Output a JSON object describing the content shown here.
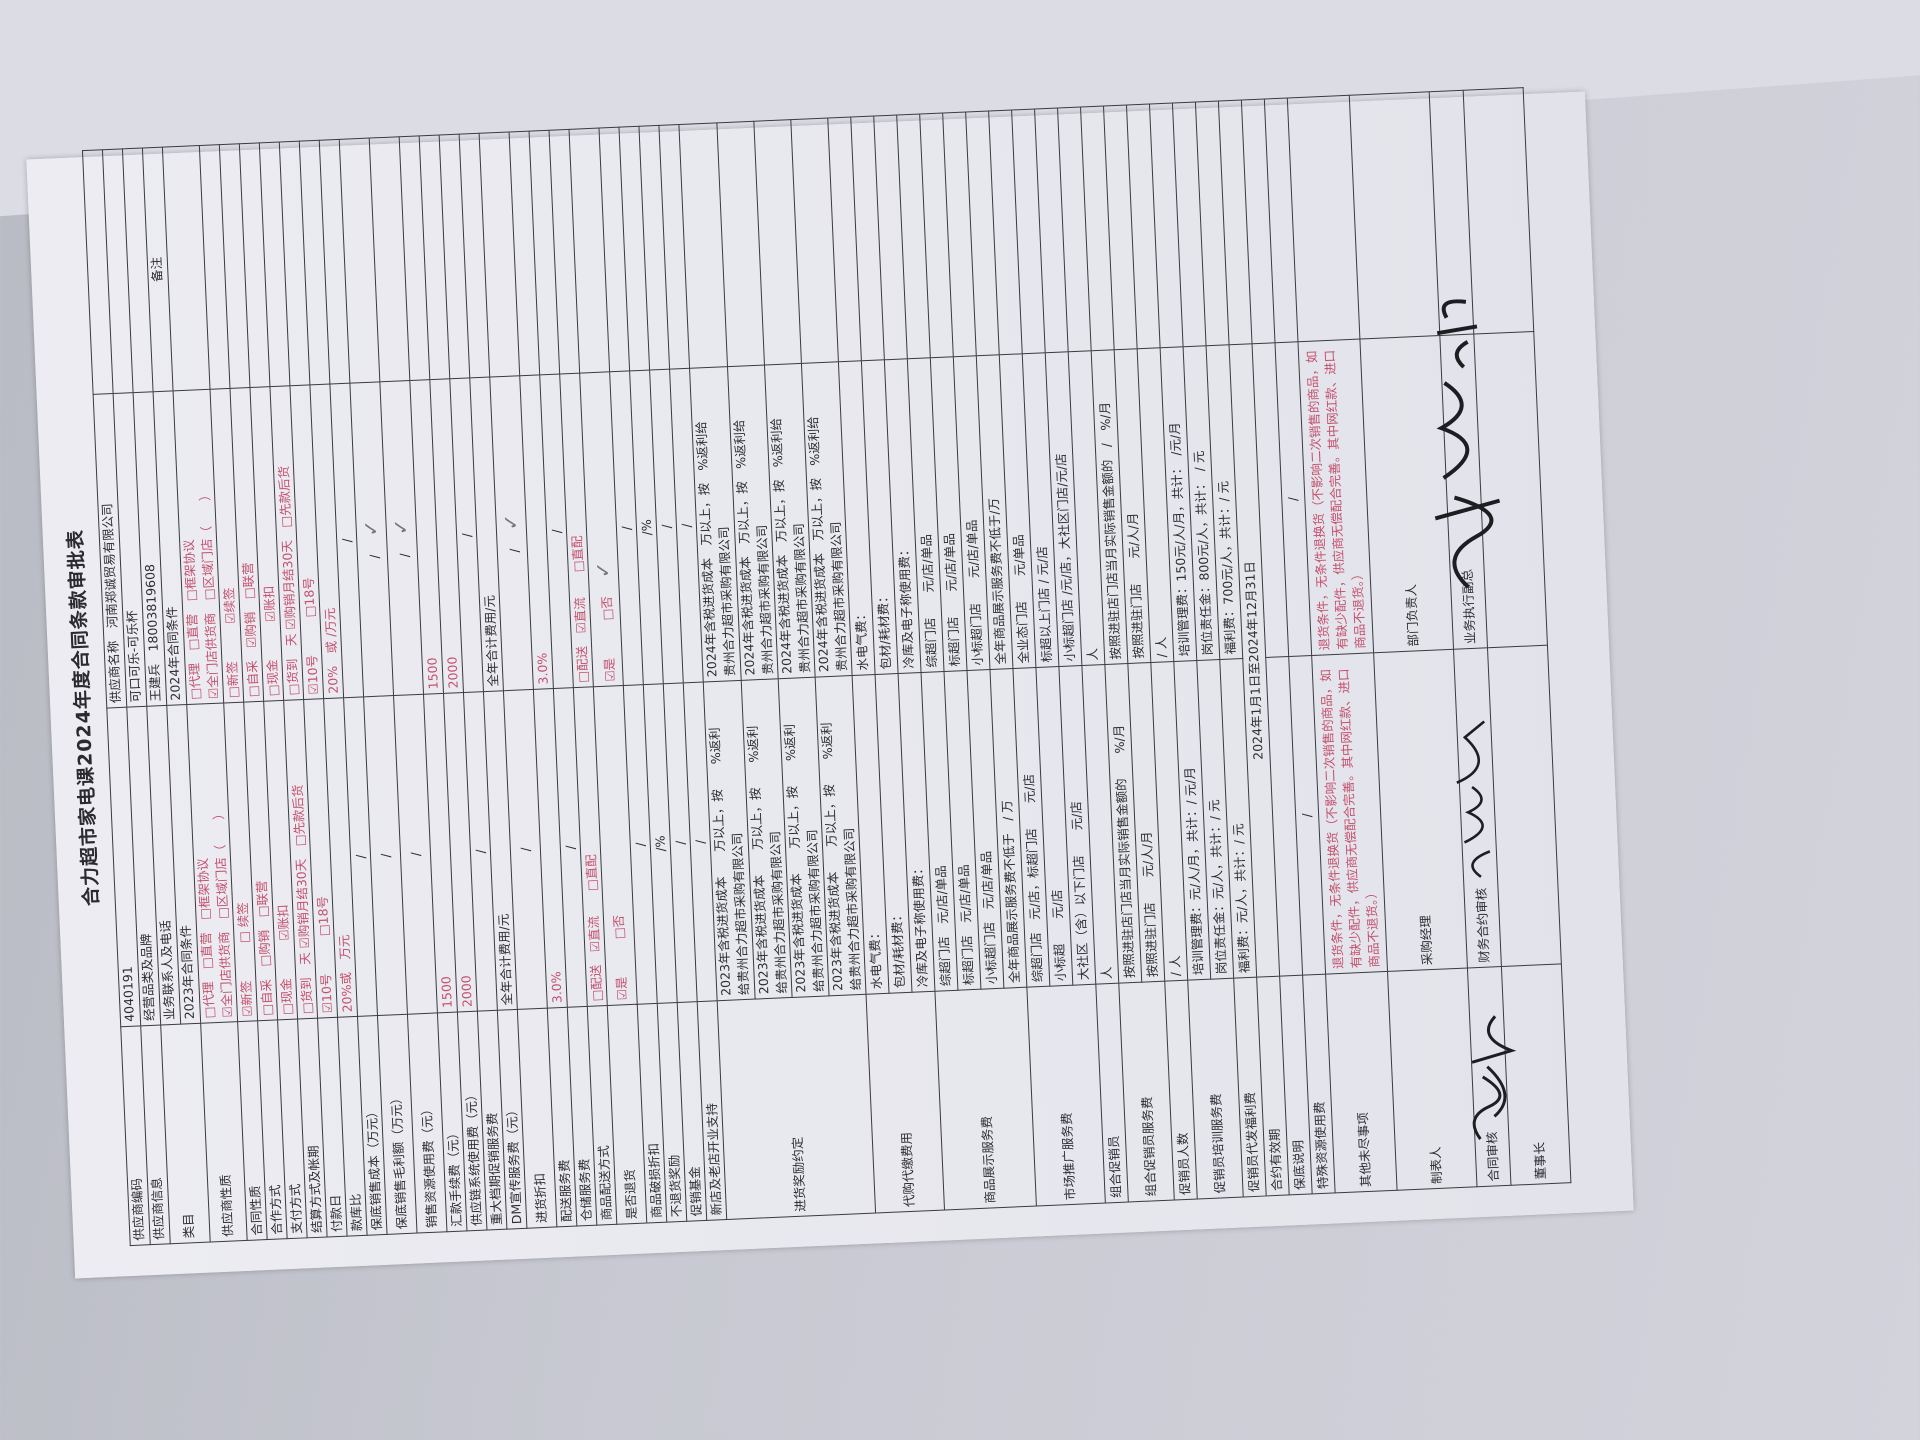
{
  "title": "合力超市家电课2024年度合同条款审批表",
  "colors": {
    "ink": "#2d2d33",
    "red_print": "#c4506c",
    "pencil": "#777777"
  },
  "sections": [
    {
      "label": "供应商编码",
      "rows": [
        {
          "a": "4040191",
          "b": "供应商名称　河南郑诚贸易有限公司",
          "r": ""
        }
      ]
    },
    {
      "label": "供应商信息",
      "rows": [
        {
          "a": "经营品类及品牌",
          "b": "可口可乐-可乐杯",
          "r": ""
        }
      ]
    },
    {
      "label": "类目",
      "rows": [
        {
          "a": "业务联系人及电话",
          "b": "王建兵　18003819608",
          "r": ""
        },
        {
          "a": "2023年合同条件",
          "b": "2024年合同条件",
          "r": "备注"
        }
      ]
    },
    {
      "label": "供应商性质",
      "rows": [
        {
          "a": "□代理　□直营　□框架协议\n☑全门店供货商　□区域门店（　　）",
          "b": "□代理　□直营　□框架协议\n☑全门店供货商　□区域门店（　　）",
          "r": "",
          "red": true
        }
      ]
    },
    {
      "label": "合同性质",
      "rows": [
        {
          "a": "☑新签　　　□ 续签",
          "b": "□新签　　　☑续签",
          "r": "",
          "red": true
        }
      ]
    },
    {
      "label": "合作方式",
      "rows": [
        {
          "a": "□自采　□购销　□联营",
          "b": "□自采　☑购销　□联营",
          "r": "",
          "red": true
        }
      ]
    },
    {
      "label": "支付方式",
      "rows": [
        {
          "a": "□现金　　　☑账扣",
          "b": "□现金　　　☑账扣",
          "r": "",
          "red": true
        }
      ]
    },
    {
      "label": "结算方式及帐期",
      "rows": [
        {
          "a": "□货到　天 ☑购销月结30天　□先款后货",
          "b": "□货到　天 ☑购销月结30天　□先款后货",
          "r": "",
          "red": true
        }
      ]
    },
    {
      "label": "付款日",
      "rows": [
        {
          "a": "☑10号　　　□18号",
          "b": "☑10号　　　□18号",
          "r": "",
          "red": true
        }
      ]
    },
    {
      "label": "款库比",
      "rows": [
        {
          "a": "20%或　万元",
          "b": "20%　或 /万元",
          "r": "",
          "red": true
        }
      ]
    },
    {
      "label": "保底销售成本（万元）",
      "rows": [
        {
          "a": "/",
          "b": "/",
          "r": ""
        }
      ]
    },
    {
      "label": "保底销售毛利额（万元）",
      "rows": [
        {
          "a": "/",
          "b": "/",
          "r": "",
          "tick": true
        }
      ]
    },
    {
      "label": "销售资源使用费（元）",
      "rows": [
        {
          "a": "/",
          "b": "/",
          "r": "",
          "tick": true
        }
      ]
    },
    {
      "label": "汇款手续费（元）",
      "rows": [
        {
          "a": "1500",
          "b": "1500",
          "r": "",
          "red": true
        }
      ]
    },
    {
      "label": "供应链系统使用费（元）",
      "rows": [
        {
          "a": "2000",
          "b": "2000",
          "r": "",
          "red": true
        }
      ]
    },
    {
      "label": "重大档期促销服务费",
      "rows": [
        {
          "a": "/",
          "b": "/",
          "r": ""
        }
      ]
    },
    {
      "label": "DM宣传服务费（元）",
      "rows": [
        {
          "a": "全年合计费用/元",
          "b": "全年合计费用/元",
          "r": ""
        }
      ]
    },
    {
      "label": "进货折扣",
      "rows": [
        {
          "a": "/",
          "b": "/",
          "r": "",
          "tick": true
        }
      ]
    },
    {
      "label": "配送服务费",
      "rows": [
        {
          "a": "3.0%",
          "b": "3.0%",
          "r": "",
          "red": true
        }
      ]
    },
    {
      "label": "仓储服务费",
      "rows": [
        {
          "a": "/",
          "b": "/",
          "r": ""
        }
      ]
    },
    {
      "label": "商品配送方式",
      "rows": [
        {
          "a": "□配送　☑直流　　□直配",
          "b": "□配送　☑直流　　□直配",
          "r": "",
          "red": true
        }
      ]
    },
    {
      "label": "是否退货",
      "rows": [
        {
          "a": "☑是　　　□否",
          "b": "☑是　　　□否",
          "r": "",
          "red": true,
          "tick": true
        }
      ]
    },
    {
      "label": "商品破损折扣",
      "rows": [
        {
          "a": "/",
          "b": "/",
          "r": ""
        }
      ]
    },
    {
      "label": "不退货奖励",
      "rows": [
        {
          "a": "/%",
          "b": "/%",
          "r": ""
        }
      ]
    },
    {
      "label": "促销基金",
      "rows": [
        {
          "a": "/",
          "b": "/",
          "r": ""
        }
      ]
    },
    {
      "label": "新店及老店开业支持",
      "rows": [
        {
          "a": "/",
          "b": "/",
          "r": ""
        }
      ]
    },
    {
      "label": "进货奖励约定",
      "rows": [
        {
          "a": "2023年含税进货成本　　万以上，按　　%返利\n给贵州合力超市采购有限公司",
          "b": "2024年含税进货成本　万以上，按　%返利给\n贵州合力超市采购有限公司",
          "r": ""
        },
        {
          "a": "2023年含税进货成本　　万以上，按　　%返利\n给贵州合力超市采购有限公司",
          "b": "2024年含税进货成本　万以上，按　%返利给\n贵州合力超市采购有限公司",
          "r": ""
        },
        {
          "a": "2023年含税进货成本　　万以上，按　　%返利\n给贵州合力超市采购有限公司",
          "b": "2024年含税进货成本　万以上，按　%返利给\n贵州合力超市采购有限公司",
          "r": ""
        },
        {
          "a": "2023年含税进货成本　　万以上，按　　%返利\n给贵州合力超市采购有限公司",
          "b": "2024年含税进货成本　万以上，按　%返利给\n贵州合力超市采购有限公司",
          "r": ""
        }
      ]
    },
    {
      "label": "代购代缴费用",
      "rows": [
        {
          "a": "水电气费：",
          "b": "水电气费：",
          "r": ""
        },
        {
          "a": "包材/耗材费：",
          "b": "包材/耗材费：",
          "r": ""
        },
        {
          "a": "冷库及电子称使用费：",
          "b": "冷库及电子称使用费：",
          "r": ""
        }
      ]
    },
    {
      "label": "商品展示服务费",
      "rows": [
        {
          "a": "综超门店　元/店/单品",
          "b": "综超门店　　元/店/单品",
          "r": ""
        },
        {
          "a": "标超门店　元/店/单品",
          "b": "标超门店　　元/店/单品",
          "r": ""
        },
        {
          "a": "小标超门店　元/店/单品",
          "b": "小标超门店　　元/店/单品",
          "r": ""
        },
        {
          "a": "全年商品展示服务费不低于　/ 万",
          "b": "全年商品展示服务费不低于/万",
          "r": ""
        }
      ]
    },
    {
      "label": "市场推广服务费",
      "rows": [
        {
          "a": "综超门店　元/店，标超门店　　元/店",
          "b": "全业态门店　　元/单品",
          "r": ""
        },
        {
          "a": "小标超　　元/店",
          "b": "标超以上门店 / 元/店",
          "r": ""
        },
        {
          "a": "大社区（含）以下门店　　元/店",
          "b": "小标超门店 /元/店，大社区门店/元/店",
          "r": ""
        }
      ]
    },
    {
      "label": "组合促销员",
      "rows": [
        {
          "a": "人",
          "b": "人",
          "r": ""
        }
      ]
    },
    {
      "label": "组合促销员服务费",
      "rows": [
        {
          "a": "按照进驻店门店当月实际销售金额的　　%/月",
          "b": "按照进驻店门店当月实际销售金额的　/　%/月",
          "r": ""
        },
        {
          "a": "按照进驻门店　　元/人/月",
          "b": "按照进驻门店　　元/人/月",
          "r": ""
        }
      ]
    },
    {
      "label": "促销员人数",
      "rows": [
        {
          "a": "/ 人",
          "b": "/ 人",
          "r": ""
        }
      ]
    },
    {
      "label": "促销员培训服务费",
      "rows": [
        {
          "a": "培训管理费：元/人/月，共计：/ 元/月",
          "b": "培训管理费：150元/人/月，共计：　/元/月",
          "r": ""
        },
        {
          "a": "岗位责任金：元/人，共计：/ 元",
          "b": "岗位责任金：800元/人，共计：　/ 元",
          "r": ""
        }
      ]
    },
    {
      "label": "促销员代发福利费",
      "rows": [
        {
          "a": "福利费：元/人，共计：/ 元",
          "b": "福利费：700元/人，共计：/ 元",
          "r": ""
        }
      ]
    },
    {
      "label": "合约有效期",
      "rows": [
        {
          "ab": "2024年1月1日至2024年12月31日",
          "r": ""
        }
      ]
    },
    {
      "label": "保底说明",
      "rows": [
        {
          "a": "",
          "b": "",
          "r": ""
        }
      ]
    },
    {
      "label": "特殊资源使用费",
      "rows": [
        {
          "a": "/",
          "b": "/",
          "r": ""
        }
      ]
    },
    {
      "label": "其他未尽事项",
      "rows": [
        {
          "a": "退货条件，无条件退换货（不影响二次销售的商品，如有缺少配件，供应商无偿配合完善。其中网红款、进口商品不退货。）",
          "b": "退货条件，无条件退换货（不影响二次销售的商品，如有缺少配件，供应商无偿配合完善。其中网红款、进口商品不退货。）",
          "r": "",
          "red": true
        }
      ]
    },
    {
      "label": "制表人",
      "rows": [
        {
          "a": "采购经理",
          "b": "部门负责人",
          "r": ""
        }
      ]
    },
    {
      "label": "合同审核",
      "rows": [
        {
          "a": "财务合约审核",
          "b": "业务执行副总",
          "r": ""
        }
      ]
    },
    {
      "label": "董事长",
      "rows": [
        {
          "a": "",
          "b": "",
          "r": ""
        }
      ]
    }
  ]
}
